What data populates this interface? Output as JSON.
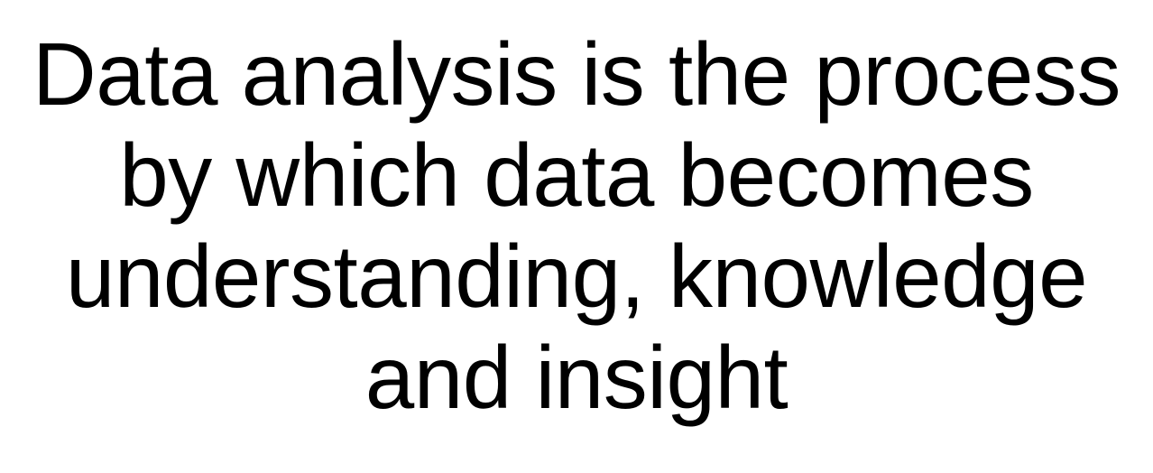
{
  "slide": {
    "lines": [
      "Data analysis is the process",
      "by which data becomes",
      "understanding, knowledge",
      "and insight"
    ]
  },
  "colors": {
    "background": "#ffffff",
    "text": "#000000"
  }
}
